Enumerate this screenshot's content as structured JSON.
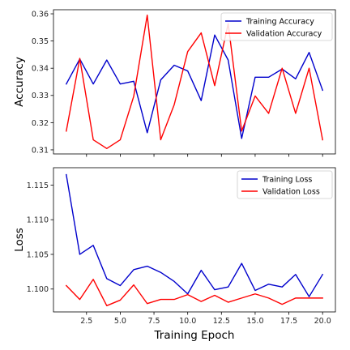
{
  "chart_data": [
    {
      "type": "line",
      "title": "",
      "xlabel": "",
      "ylabel": "Accuracy",
      "xlim": [
        0.05,
        20.95
      ],
      "ylim": [
        0.3085,
        0.3615
      ],
      "xticks": [
        2.5,
        5.0,
        7.5,
        10.0,
        12.5,
        15.0,
        17.5,
        20.0
      ],
      "xtick_labels_visible": false,
      "yticks": [
        0.31,
        0.32,
        0.33,
        0.34,
        0.35,
        0.36
      ],
      "ytick_labels": [
        "0.31",
        "0.32",
        "0.33",
        "0.34",
        "0.35",
        "0.36"
      ],
      "grid": false,
      "legend": "top-right",
      "x": [
        1,
        2,
        3,
        4,
        5,
        6,
        7,
        8,
        9,
        10,
        11,
        12,
        13,
        14,
        15,
        16,
        17,
        18,
        19,
        20
      ],
      "series": [
        {
          "name": "Training Accuracy",
          "color": "#0000cc",
          "values": [
            0.3342,
            0.3434,
            0.3342,
            0.343,
            0.3342,
            0.3352,
            0.3163,
            0.3357,
            0.3411,
            0.339,
            0.3281,
            0.3522,
            0.343,
            0.3142,
            0.3367,
            0.3367,
            0.3397,
            0.3361,
            0.3458,
            0.3319
          ]
        },
        {
          "name": "Validation Accuracy",
          "color": "#ff0000",
          "values": [
            0.3169,
            0.3436,
            0.3137,
            0.3105,
            0.3137,
            0.3297,
            0.3595,
            0.3137,
            0.3266,
            0.3461,
            0.353,
            0.3336,
            0.3564,
            0.3169,
            0.3298,
            0.3234,
            0.34,
            0.3234,
            0.34,
            0.3137
          ]
        }
      ]
    },
    {
      "type": "line",
      "title": "",
      "xlabel": "Training Epoch",
      "ylabel": "Loss",
      "xlim": [
        0.05,
        20.95
      ],
      "ylim": [
        1.0967,
        1.1175
      ],
      "xticks": [
        2.5,
        5.0,
        7.5,
        10.0,
        12.5,
        15.0,
        17.5,
        20.0
      ],
      "xtick_labels": [
        "2.5",
        "5.0",
        "7.5",
        "10.0",
        "12.5",
        "15.0",
        "17.5",
        "20.0"
      ],
      "yticks": [
        1.1,
        1.105,
        1.11,
        1.115
      ],
      "ytick_labels": [
        "1.100",
        "1.105",
        "1.110",
        "1.115"
      ],
      "grid": false,
      "legend": "top-right",
      "x": [
        1,
        2,
        3,
        4,
        5,
        6,
        7,
        8,
        9,
        10,
        11,
        12,
        13,
        14,
        15,
        16,
        17,
        18,
        19,
        20
      ],
      "series": [
        {
          "name": "Training Loss",
          "color": "#0000cc",
          "values": [
            1.1165,
            1.105,
            1.1063,
            1.1015,
            1.1005,
            1.1028,
            1.1033,
            1.1024,
            1.1011,
            1.0993,
            1.1027,
            1.0999,
            1.1003,
            1.1037,
            1.0998,
            1.1007,
            1.1003,
            1.1021,
            1.0989,
            1.1021
          ]
        },
        {
          "name": "Validation Loss",
          "color": "#ff0000",
          "values": [
            1.1005,
            1.0985,
            1.1014,
            1.0976,
            1.0984,
            1.1006,
            1.0979,
            1.0985,
            1.0985,
            1.0992,
            1.0982,
            1.0991,
            1.0981,
            1.0987,
            1.0993,
            1.0987,
            1.0978,
            1.0987,
            1.0987,
            1.0987
          ]
        }
      ]
    }
  ]
}
